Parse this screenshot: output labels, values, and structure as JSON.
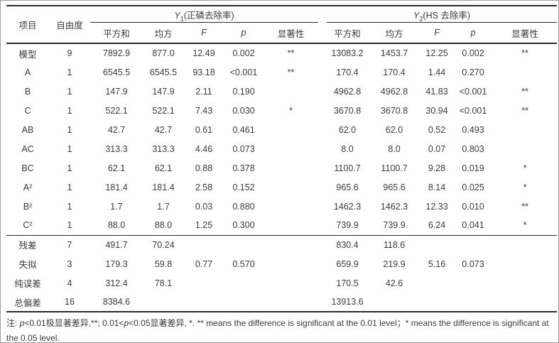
{
  "colors": {
    "text": "#3b3b3b",
    "rule": "#2b2b2b",
    "frame": "#9e9e9e"
  },
  "table": {
    "corner_headers": [
      "项目",
      "自由度"
    ],
    "groups": [
      {
        "var": "Y",
        "sub": "1",
        "rest": "(正磷去除率)"
      },
      {
        "var": "Y",
        "sub": "2",
        "rest": "(HS 去除率)"
      }
    ],
    "sub_headers": [
      "平方和",
      "均方",
      "F",
      "p",
      "显著性"
    ],
    "rows_main": [
      {
        "item": "模型",
        "cells": [
          "9",
          "7892.9",
          "877.0",
          "12.49",
          "0.002",
          "**",
          "13083.2",
          "1453.7",
          "12.25",
          "0.002",
          "**"
        ]
      },
      {
        "item": "A",
        "cells": [
          "1",
          "6545.5",
          "6545.5",
          "93.18",
          "<0.001",
          "**",
          "170.4",
          "170.4",
          "1.44",
          "0.270",
          ""
        ]
      },
      {
        "item": "B",
        "cells": [
          "1",
          "147.9",
          "147.9",
          "2.11",
          "0.190",
          "",
          "4962.8",
          "4962.8",
          "41.83",
          "<0.001",
          "**"
        ]
      },
      {
        "item": "C",
        "cells": [
          "1",
          "522.1",
          "522.1",
          "7.43",
          "0.030",
          "*",
          "3670.8",
          "3670.8",
          "30.94",
          "<0.001",
          "**"
        ]
      },
      {
        "item": "AB",
        "cells": [
          "1",
          "42.7",
          "42.7",
          "0.61",
          "0.461",
          "",
          "62.0",
          "62.0",
          "0.52",
          "0.493",
          ""
        ]
      },
      {
        "item": "AC",
        "cells": [
          "1",
          "313.3",
          "313.3",
          "4.46",
          "0.073",
          "",
          "8.0",
          "8.0",
          "0.07",
          "0.803",
          ""
        ]
      },
      {
        "item": "BC",
        "cells": [
          "1",
          "62.1",
          "62.1",
          "0.88",
          "0.378",
          "",
          "1100.7",
          "1100.7",
          "9.28",
          "0.019",
          "*"
        ]
      },
      {
        "item": "A²",
        "cells": [
          "1",
          "181.4",
          "181.4",
          "2.58",
          "0.152",
          "",
          "965.6",
          "965.6",
          "8.14",
          "0.025",
          "*"
        ]
      },
      {
        "item": "B²",
        "cells": [
          "1",
          "1.7",
          "1.7",
          "0.03",
          "0.880",
          "",
          "1462.3",
          "1462.3",
          "12.33",
          "0.010",
          "**"
        ]
      },
      {
        "item": "C²",
        "cells": [
          "1",
          "88.0",
          "88.0",
          "1.25",
          "0.300",
          "",
          "739.9",
          "739.9",
          "6.24",
          "0.041",
          "*"
        ]
      }
    ],
    "rows_bottom": [
      {
        "item": "残差",
        "cells": [
          "7",
          "491.7",
          "70.24",
          "",
          "",
          "",
          "830.4",
          "118.6",
          "",
          "",
          ""
        ]
      },
      {
        "item": "失拟",
        "cells": [
          "3",
          "179.3",
          "59.8",
          "0.77",
          "0.570",
          "",
          "659.9",
          "219.9",
          "5.16",
          "0.073",
          ""
        ]
      },
      {
        "item": "纯误差",
        "cells": [
          "4",
          "312.4",
          "78.1",
          "",
          "",
          "",
          "170.5",
          "42.6",
          "",
          "",
          ""
        ]
      },
      {
        "item": "总偏差",
        "cells": [
          "16",
          "8384.6",
          "",
          "",
          "",
          "",
          "13913.6",
          "",
          "",
          "",
          ""
        ]
      }
    ]
  },
  "note": {
    "segments": [
      {
        "text": "注: "
      },
      {
        "text": "p",
        "italic": true
      },
      {
        "text": "<0.01极显著差异,**; 0.01<"
      },
      {
        "text": "p",
        "italic": true
      },
      {
        "text": "<0.05显著差异, *. ** means the difference is significant at the 0.01 level；* means the difference is significant at the 0.05 level."
      }
    ]
  }
}
